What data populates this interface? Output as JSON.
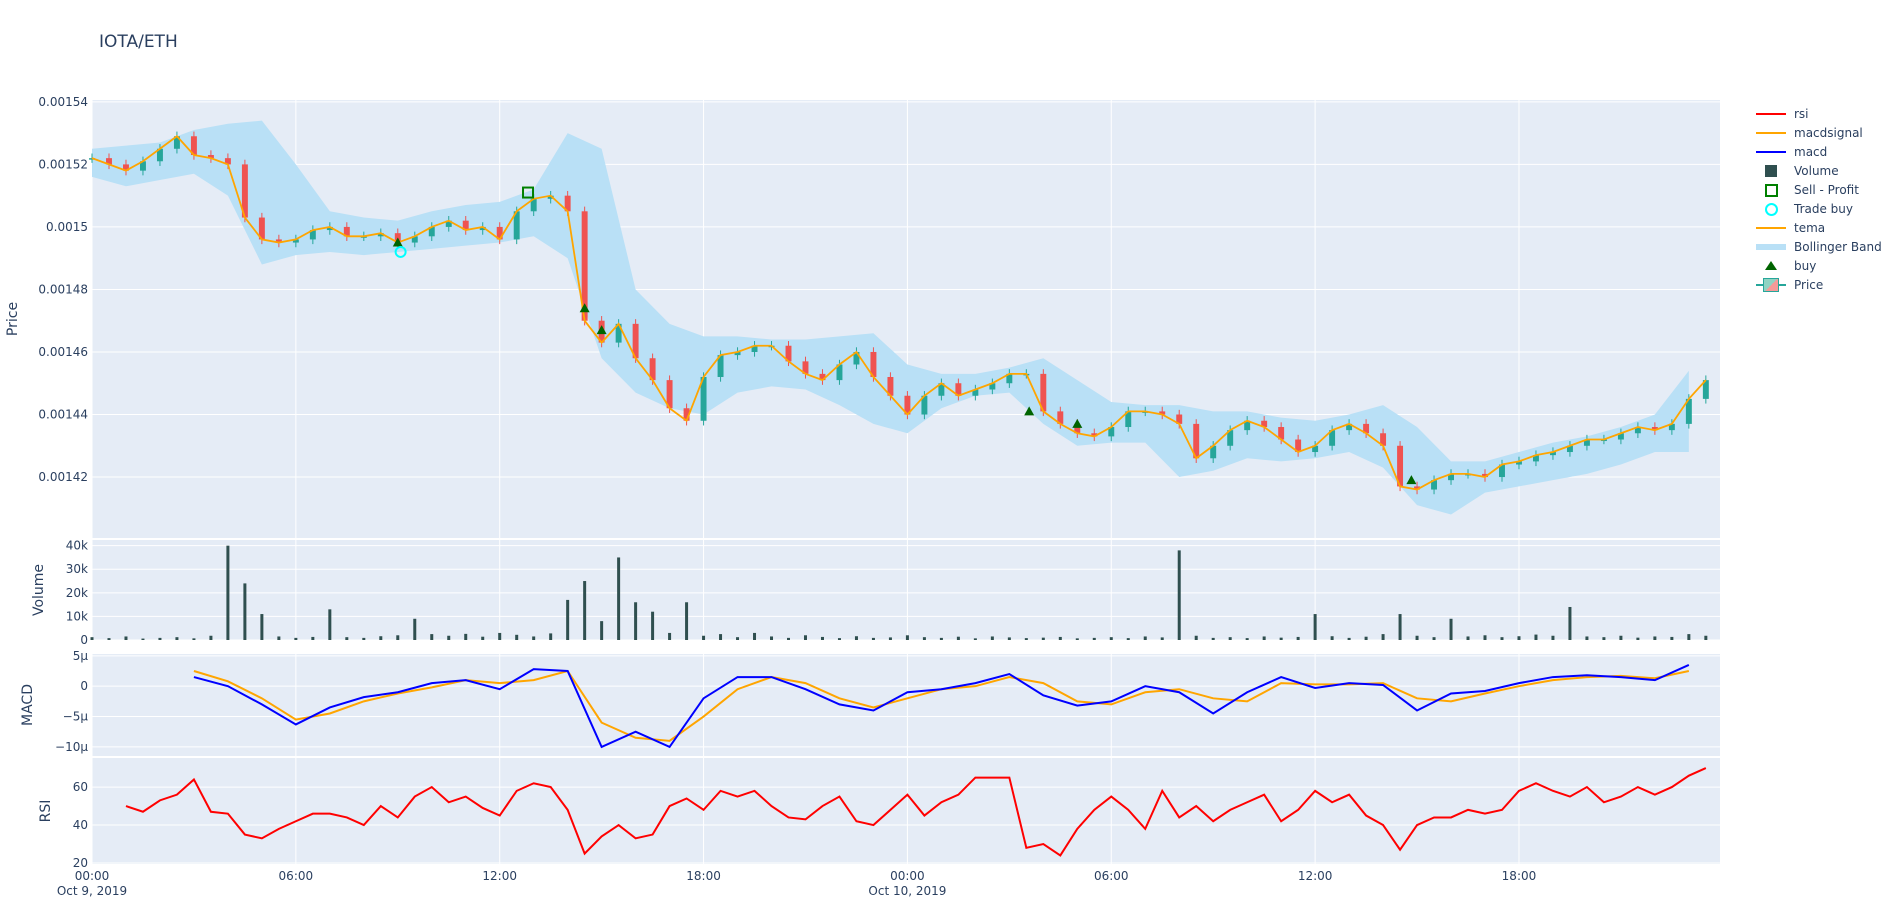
{
  "title": "IOTA/ETH",
  "legend": [
    {
      "name": "rsi",
      "kind": "line",
      "color": "#ff0000"
    },
    {
      "name": "macdsignal",
      "kind": "line",
      "color": "#ffa500"
    },
    {
      "name": "macd",
      "kind": "line",
      "color": "#0000ff"
    },
    {
      "name": "Volume",
      "kind": "square",
      "color": "#2f4f4f"
    },
    {
      "name": "Sell - Profit",
      "kind": "open-square",
      "color": "#008000"
    },
    {
      "name": "Trade buy",
      "kind": "open-circle",
      "color": "#00ffff"
    },
    {
      "name": "tema",
      "kind": "line",
      "color": "#ffa500"
    },
    {
      "name": "Bollinger Band",
      "kind": "band",
      "color": "#b9e0f6"
    },
    {
      "name": "buy",
      "kind": "triangle",
      "color": "#006400"
    },
    {
      "name": "Price",
      "kind": "candle",
      "color": "#26a69a"
    }
  ],
  "chart_data": {
    "type": "candlestick-with-subplots",
    "xlim": [
      "2019-10-09 00:00",
      "2019-10-10 23:55"
    ],
    "x_ticks": [
      {
        "t": "2019-10-09 00:00",
        "label": "00:00",
        "sub": "Oct 9, 2019"
      },
      {
        "t": "2019-10-09 06:00",
        "label": "06:00",
        "sub": ""
      },
      {
        "t": "2019-10-09 12:00",
        "label": "12:00",
        "sub": ""
      },
      {
        "t": "2019-10-09 18:00",
        "label": "18:00",
        "sub": ""
      },
      {
        "t": "2019-10-10 00:00",
        "label": "00:00",
        "sub": "Oct 10, 2019"
      },
      {
        "t": "2019-10-10 06:00",
        "label": "06:00",
        "sub": ""
      },
      {
        "t": "2019-10-10 12:00",
        "label": "12:00",
        "sub": ""
      },
      {
        "t": "2019-10-10 18:00",
        "label": "18:00",
        "sub": ""
      }
    ],
    "x": [
      "2019-10-09 00:00",
      "2019-10-09 00:30",
      "2019-10-09 01:00",
      "2019-10-09 01:30",
      "2019-10-09 02:00",
      "2019-10-09 02:30",
      "2019-10-09 03:00",
      "2019-10-09 03:30",
      "2019-10-09 04:00",
      "2019-10-09 04:30",
      "2019-10-09 05:00",
      "2019-10-09 05:30",
      "2019-10-09 06:00",
      "2019-10-09 06:30",
      "2019-10-09 07:00",
      "2019-10-09 07:30",
      "2019-10-09 08:00",
      "2019-10-09 08:30",
      "2019-10-09 09:00",
      "2019-10-09 09:30",
      "2019-10-09 10:00",
      "2019-10-09 10:30",
      "2019-10-09 11:00",
      "2019-10-09 11:30",
      "2019-10-09 12:00",
      "2019-10-09 12:30",
      "2019-10-09 13:00",
      "2019-10-09 13:30",
      "2019-10-09 14:00",
      "2019-10-09 14:30",
      "2019-10-09 15:00",
      "2019-10-09 15:30",
      "2019-10-09 16:00",
      "2019-10-09 16:30",
      "2019-10-09 17:00",
      "2019-10-09 17:30",
      "2019-10-09 18:00",
      "2019-10-09 18:30",
      "2019-10-09 19:00",
      "2019-10-09 19:30",
      "2019-10-09 20:00",
      "2019-10-09 20:30",
      "2019-10-09 21:00",
      "2019-10-09 21:30",
      "2019-10-09 22:00",
      "2019-10-09 22:30",
      "2019-10-09 23:00",
      "2019-10-09 23:30",
      "2019-10-10 00:00",
      "2019-10-10 00:30",
      "2019-10-10 01:00",
      "2019-10-10 01:30",
      "2019-10-10 02:00",
      "2019-10-10 02:30",
      "2019-10-10 03:00",
      "2019-10-10 03:30",
      "2019-10-10 04:00",
      "2019-10-10 04:30",
      "2019-10-10 05:00",
      "2019-10-10 05:30",
      "2019-10-10 06:00",
      "2019-10-10 06:30",
      "2019-10-10 07:00",
      "2019-10-10 07:30",
      "2019-10-10 08:00",
      "2019-10-10 08:30",
      "2019-10-10 09:00",
      "2019-10-10 09:30",
      "2019-10-10 10:00",
      "2019-10-10 10:30",
      "2019-10-10 11:00",
      "2019-10-10 11:30",
      "2019-10-10 12:00",
      "2019-10-10 12:30",
      "2019-10-10 13:00",
      "2019-10-10 13:30",
      "2019-10-10 14:00",
      "2019-10-10 14:30",
      "2019-10-10 15:00",
      "2019-10-10 15:30",
      "2019-10-10 16:00",
      "2019-10-10 16:30",
      "2019-10-10 17:00",
      "2019-10-10 17:30",
      "2019-10-10 18:00",
      "2019-10-10 18:30",
      "2019-10-10 19:00",
      "2019-10-10 19:30",
      "2019-10-10 20:00",
      "2019-10-10 20:30",
      "2019-10-10 21:00",
      "2019-10-10 21:30",
      "2019-10-10 22:00",
      "2019-10-10 22:30",
      "2019-10-10 23:00",
      "2019-10-10 23:30"
    ],
    "x_hourly": [
      "2019-10-09 00:00",
      "2019-10-09 01:00",
      "2019-10-09 02:00",
      "2019-10-09 03:00",
      "2019-10-09 04:00",
      "2019-10-09 05:00",
      "2019-10-09 06:00",
      "2019-10-09 07:00",
      "2019-10-09 08:00",
      "2019-10-09 09:00",
      "2019-10-09 10:00",
      "2019-10-09 11:00",
      "2019-10-09 12:00",
      "2019-10-09 13:00",
      "2019-10-09 14:00",
      "2019-10-09 15:00",
      "2019-10-09 16:00",
      "2019-10-09 17:00",
      "2019-10-09 18:00",
      "2019-10-09 19:00",
      "2019-10-09 20:00",
      "2019-10-09 21:00",
      "2019-10-09 22:00",
      "2019-10-09 23:00",
      "2019-10-10 00:00",
      "2019-10-10 01:00",
      "2019-10-10 02:00",
      "2019-10-10 03:00",
      "2019-10-10 04:00",
      "2019-10-10 05:00",
      "2019-10-10 06:00",
      "2019-10-10 07:00",
      "2019-10-10 08:00",
      "2019-10-10 09:00",
      "2019-10-10 10:00",
      "2019-10-10 11:00",
      "2019-10-10 12:00",
      "2019-10-10 13:00",
      "2019-10-10 14:00",
      "2019-10-10 15:00",
      "2019-10-10 16:00",
      "2019-10-10 17:00",
      "2019-10-10 18:00",
      "2019-10-10 19:00",
      "2019-10-10 20:00",
      "2019-10-10 21:00",
      "2019-10-10 22:00",
      "2019-10-10 23:00"
    ],
    "price": {
      "ylabel": "Price",
      "ylim": [
        0.0014005,
        0.0015406
      ],
      "ticks": [
        "0.00142",
        "0.00144",
        "0.00146",
        "0.00148",
        "0.0015",
        "0.00152",
        "0.00154"
      ],
      "close": [
        0.001522,
        0.00152,
        0.001518,
        0.001521,
        0.001525,
        0.001529,
        0.001523,
        0.001522,
        0.00152,
        0.001503,
        0.001496,
        0.001495,
        0.001496,
        0.001499,
        0.0015,
        0.001497,
        0.001497,
        0.001498,
        0.001495,
        0.001497,
        0.0015,
        0.001502,
        0.001499,
        0.0015,
        0.001496,
        0.001505,
        0.001509,
        0.00151,
        0.001505,
        0.00147,
        0.001463,
        0.001469,
        0.001458,
        0.001451,
        0.001442,
        0.001438,
        0.001452,
        0.001459,
        0.00146,
        0.001462,
        0.001462,
        0.001457,
        0.001453,
        0.001451,
        0.001456,
        0.00146,
        0.001452,
        0.001446,
        0.00144,
        0.001446,
        0.00145,
        0.001446,
        0.001448,
        0.00145,
        0.001453,
        0.001453,
        0.001441,
        0.001437,
        0.001434,
        0.001433,
        0.001436,
        0.001441,
        0.001441,
        0.00144,
        0.001437,
        0.001426,
        0.00143,
        0.001435,
        0.001438,
        0.001436,
        0.001432,
        0.001428,
        0.00143,
        0.001435,
        0.001437,
        0.001434,
        0.00143,
        0.001417,
        0.001416,
        0.001419,
        0.001421,
        0.001421,
        0.00142,
        0.001424,
        0.001425,
        0.001427,
        0.001428,
        0.00143,
        0.001432,
        0.001432,
        0.001434,
        0.001436,
        0.001435,
        0.001437,
        0.001445,
        0.001451
      ],
      "bb_upper": [
        0.001525,
        0.001526,
        0.001527,
        0.001531,
        0.001533,
        0.001534,
        0.00152,
        0.001505,
        0.001503,
        0.001502,
        0.001505,
        0.001507,
        0.001508,
        0.001512,
        0.00153,
        0.001525,
        0.00148,
        0.001469,
        0.001465,
        0.001465,
        0.001464,
        0.001464,
        0.001465,
        0.001466,
        0.001456,
        0.001453,
        0.001453,
        0.001455,
        0.001458,
        0.001451,
        0.001444,
        0.001443,
        0.001443,
        0.001441,
        0.001441,
        0.001439,
        0.001438,
        0.00144,
        0.001443,
        0.001436,
        0.001425,
        0.001425,
        0.001428,
        0.001431,
        0.001433,
        0.001436,
        0.00144,
        0.001454
      ],
      "bb_lower": [
        0.001516,
        0.001513,
        0.001515,
        0.001517,
        0.00151,
        0.001488,
        0.001491,
        0.001492,
        0.001491,
        0.001492,
        0.001493,
        0.001494,
        0.001495,
        0.001497,
        0.00149,
        0.001458,
        0.001447,
        0.001442,
        0.00144,
        0.001447,
        0.001449,
        0.001448,
        0.001443,
        0.001437,
        0.001434,
        0.001442,
        0.001446,
        0.001447,
        0.001437,
        0.00143,
        0.001431,
        0.001431,
        0.00142,
        0.001422,
        0.001426,
        0.001425,
        0.001426,
        0.001428,
        0.001423,
        0.001411,
        0.001408,
        0.001415,
        0.001417,
        0.001419,
        0.001421,
        0.001424,
        0.001428,
        0.001428
      ],
      "buy": [
        {
          "t": "2019-10-09 09:00",
          "y": 0.001495
        },
        {
          "t": "2019-10-09 14:30",
          "y": 0.001474
        },
        {
          "t": "2019-10-09 15:00",
          "y": 0.001467
        },
        {
          "t": "2019-10-10 03:35",
          "y": 0.001441
        },
        {
          "t": "2019-10-10 05:00",
          "y": 0.001437
        },
        {
          "t": "2019-10-10 14:50",
          "y": 0.001419
        }
      ],
      "trade_buy": [
        {
          "t": "2019-10-09 09:05",
          "y": 0.001492
        }
      ],
      "sell_profit": [
        {
          "t": "2019-10-09 12:50",
          "y": 0.001511
        }
      ]
    },
    "volume": {
      "ylabel": "Volume",
      "ylim": [
        0,
        42400
      ],
      "ticks": [
        {
          "v": 0,
          "label": "0"
        },
        {
          "v": 10000,
          "label": "10k"
        },
        {
          "v": 20000,
          "label": "20k"
        },
        {
          "v": 30000,
          "label": "30k"
        },
        {
          "v": 40000,
          "label": "40k"
        }
      ],
      "values": [
        1200,
        800,
        1500,
        600,
        900,
        1200,
        700,
        1800,
        40000,
        24000,
        11000,
        1500,
        900,
        1300,
        13000,
        1200,
        900,
        1600,
        2000,
        9000,
        2500,
        1800,
        2600,
        1400,
        3000,
        2200,
        1500,
        2800,
        17000,
        25000,
        8000,
        35000,
        16000,
        12000,
        3000,
        16000,
        1800,
        2500,
        1200,
        3000,
        1500,
        900,
        2000,
        1300,
        800,
        1600,
        900,
        1100,
        2000,
        1200,
        900,
        1400,
        700,
        1500,
        1100,
        800,
        1000,
        1300,
        700,
        900,
        1200,
        800,
        1500,
        1100,
        38000,
        1800,
        900,
        1200,
        800,
        1500,
        1000,
        1300,
        11000,
        1600,
        900,
        1400,
        2500,
        11000,
        1800,
        1200,
        9000,
        1500,
        2000,
        1200,
        1600,
        2300,
        1800,
        14000,
        1500,
        1200,
        1800,
        1000,
        1500,
        1300,
        2500,
        1800
      ]
    },
    "macd": {
      "ylabel": "MACD",
      "ylim": [
        -11.5,
        5.3
      ],
      "unit": "µ",
      "ticks": [
        {
          "v": 5,
          "label": "5µ"
        },
        {
          "v": 0,
          "label": "0"
        },
        {
          "v": -5,
          "label": "−5µ"
        },
        {
          "v": -10,
          "label": "−10µ"
        }
      ],
      "macd": [
        null,
        null,
        null,
        1.5,
        0,
        -3,
        -6.3,
        -3.5,
        -1.8,
        -1,
        0.5,
        1,
        -0.5,
        2.8,
        2.5,
        -10,
        -7.5,
        -10,
        -2,
        1.5,
        1.5,
        -0.5,
        -3,
        -4,
        -1,
        -0.5,
        0.5,
        2,
        -1.5,
        -3.2,
        -2.5,
        0,
        -1,
        -4.5,
        -1,
        1.5,
        -0.3,
        0.5,
        0.2,
        -4,
        -1.2,
        -0.8,
        0.5,
        1.5,
        1.8,
        1.5,
        1,
        3.5
      ],
      "macdsignal": [
        null,
        null,
        null,
        2.5,
        0.8,
        -2,
        -5.5,
        -4.5,
        -2.5,
        -1.2,
        -0.2,
        1,
        0.5,
        1,
        2.5,
        -6,
        -8.5,
        -9,
        -5,
        -0.5,
        1.5,
        0.5,
        -2,
        -3.5,
        -2,
        -0.5,
        0,
        1.5,
        0.5,
        -2.5,
        -3,
        -1,
        -0.5,
        -2,
        -2.5,
        0.5,
        0.3,
        0.3,
        0.5,
        -2,
        -2.5,
        -1.2,
        0,
        1,
        1.5,
        1.7,
        1.3,
        2.5
      ]
    },
    "rsi": {
      "ylabel": "RSI",
      "ylim": [
        19.5,
        75.3
      ],
      "ticks": [
        {
          "v": 20,
          "label": "20"
        },
        {
          "v": 40,
          "label": "40"
        },
        {
          "v": 60,
          "label": "60"
        }
      ],
      "values": [
        null,
        null,
        50,
        47,
        53,
        56,
        64,
        47,
        46,
        35,
        33,
        38,
        42,
        46,
        46,
        44,
        40,
        50,
        44,
        55,
        60,
        52,
        55,
        49,
        45,
        58,
        62,
        60,
        48,
        25,
        34,
        40,
        33,
        35,
        50,
        54,
        48,
        58,
        55,
        58,
        50,
        44,
        43,
        50,
        55,
        42,
        40,
        48,
        56,
        45,
        52,
        56,
        65,
        65,
        65,
        28,
        30,
        24,
        38,
        48,
        55,
        48,
        38,
        58,
        44,
        50,
        42,
        48,
        52,
        56,
        42,
        48,
        58,
        52,
        56,
        45,
        40,
        27,
        40,
        44,
        44,
        48,
        46,
        48,
        58,
        62,
        58,
        55,
        60,
        52,
        55,
        60,
        56,
        60,
        66,
        70
      ]
    }
  }
}
